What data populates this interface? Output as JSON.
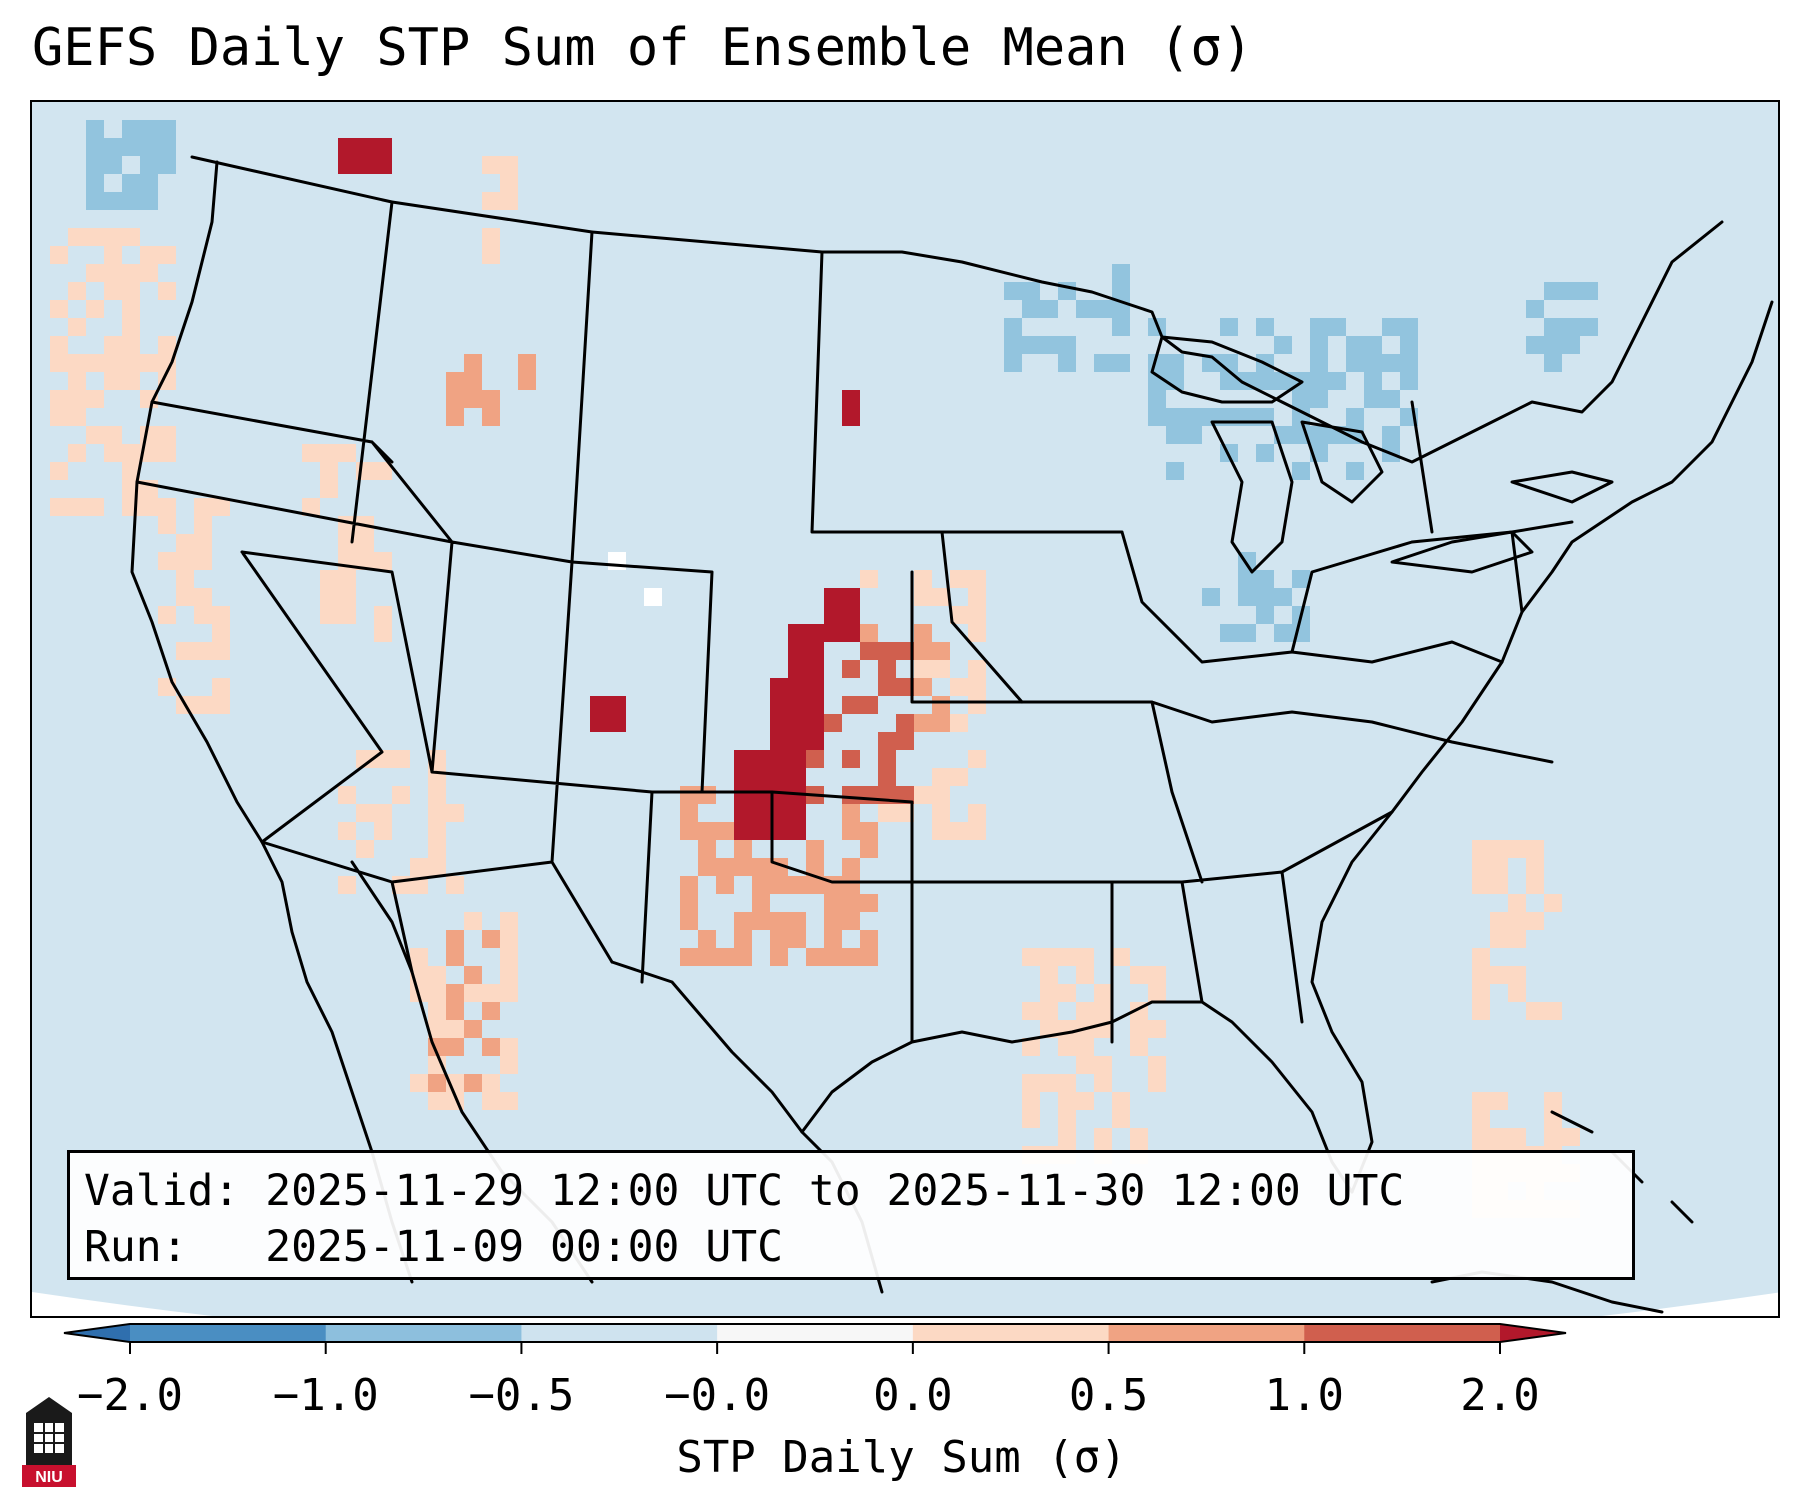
{
  "title": "GEFS Daily STP Sum of Ensemble Mean (σ)",
  "info": {
    "valid_label": "Valid:",
    "valid_value": "2025-11-29 12:00 UTC to 2025-11-30 12:00 UTC",
    "run_label": "Run:",
    "run_value": "2025-11-09 00:00 UTC"
  },
  "colorbar": {
    "label": "STP Daily Sum (σ)",
    "ticks": [
      "−2.0",
      "−1.0",
      "−0.5",
      "−0.0",
      "0.0",
      "0.5",
      "1.0",
      "2.0"
    ],
    "bins": [
      {
        "from": -2.0,
        "to": -1.0,
        "color": "#4a8ec2"
      },
      {
        "from": -1.0,
        "to": -0.5,
        "color": "#8dbfdd"
      },
      {
        "from": -0.5,
        "to": -0.0,
        "color": "#cfe3ef"
      },
      {
        "from": -0.0,
        "to": 0.0,
        "color": "#f7f7f7"
      },
      {
        "from": 0.0,
        "to": 0.5,
        "color": "#fcd9c4"
      },
      {
        "from": 0.5,
        "to": 1.0,
        "color": "#f0a383"
      },
      {
        "from": 1.0,
        "to": 2.0,
        "color": "#d05f4e"
      }
    ],
    "under_color": "#2f6fae",
    "over_color": "#b2182b"
  },
  "colors": {
    "ocean_base": "#d2e5f0",
    "neg_weak": "#92c4de",
    "pos_weak": "#fcd9c4",
    "pos_mid": "#f0a383",
    "pos_strong": "#d05f4e",
    "pos_extreme": "#b2182b",
    "zero": "#ffffff"
  },
  "logo": {
    "text": "NIU"
  }
}
